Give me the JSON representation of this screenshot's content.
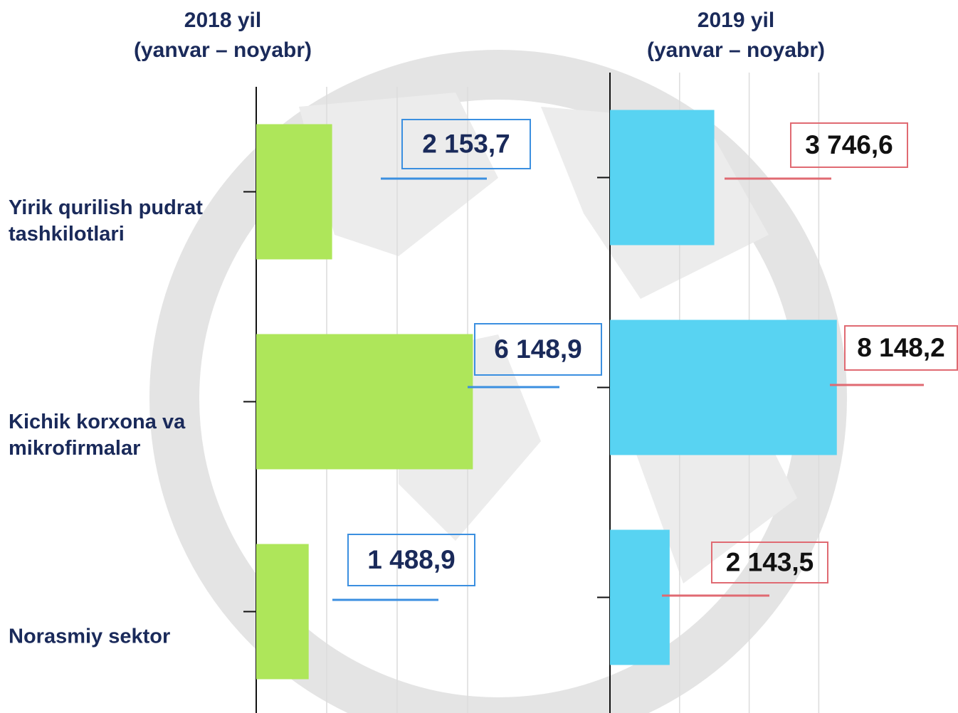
{
  "chart_data": [
    {
      "type": "bar",
      "orientation": "horizontal",
      "title": "2018 yil",
      "subtitle": "(yanvar – noyabr)",
      "categories": [
        "Yirik qurilish pudrat tashkilotlari",
        "Kichik korxona va mikrofirmalar",
        "Norasmiy sektor"
      ],
      "values": [
        2153.7,
        6148.9,
        1488.9
      ],
      "value_labels": [
        "2 153,7",
        "6 148,9",
        "1 488,9"
      ],
      "color": "#aee65a",
      "xlim": [
        0,
        10000
      ],
      "xticks": [
        0,
        2000,
        4000,
        6000
      ],
      "grid": true
    },
    {
      "type": "bar",
      "orientation": "horizontal",
      "title": "2019 yil",
      "subtitle": "(yanvar – noyabr)",
      "values": [
        3746.6,
        8148.2,
        2143.5
      ],
      "value_labels": [
        "3 746,6",
        "8 148,2",
        "2 143,5"
      ],
      "color": "#58d3f2",
      "xlim": [
        0,
        12500
      ],
      "xticks": [
        0,
        2500,
        5000,
        7500
      ],
      "grid": true
    }
  ]
}
